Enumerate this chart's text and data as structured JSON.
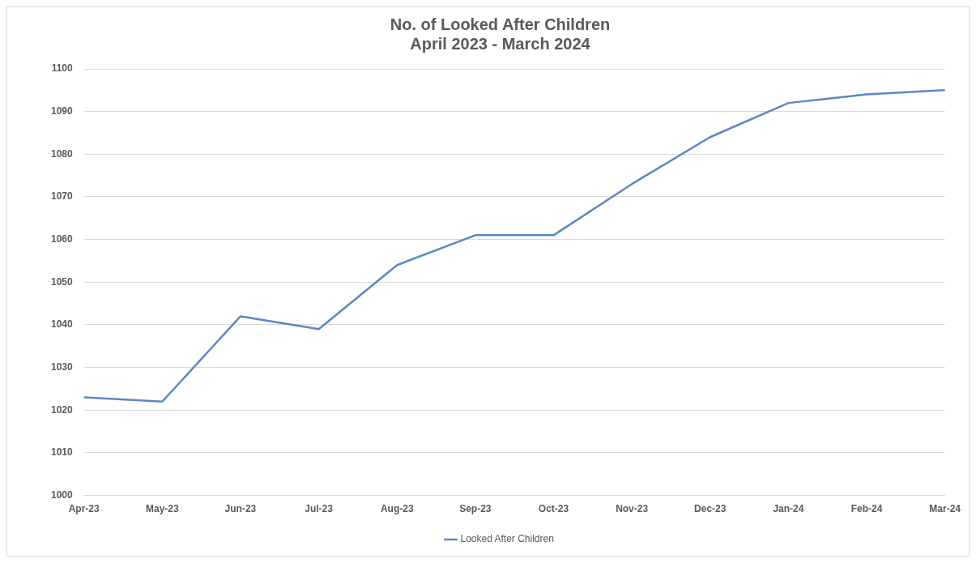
{
  "chart_data": {
    "type": "line",
    "title": "No. of Looked After Children\nApril 2023 - March 2024",
    "categories": [
      "Apr-23",
      "May-23",
      "Jun-23",
      "Jul-23",
      "Aug-23",
      "Sep-23",
      "Oct-23",
      "Nov-23",
      "Dec-23",
      "Jan-24",
      "Feb-24",
      "Mar-24"
    ],
    "series": [
      {
        "name": "Looked After Children",
        "color": "#5b88c4",
        "values": [
          1023,
          1022,
          1042,
          1039,
          1054,
          1061,
          1061,
          1073,
          1084,
          1092,
          1094,
          1095
        ]
      }
    ],
    "ylim": [
      1000,
      1100
    ],
    "yticks": [
      1000,
      1010,
      1020,
      1030,
      1040,
      1050,
      1060,
      1070,
      1080,
      1090,
      1100
    ],
    "grid": "y",
    "legend": "bottom",
    "marker": "none",
    "line_style": "solid"
  }
}
